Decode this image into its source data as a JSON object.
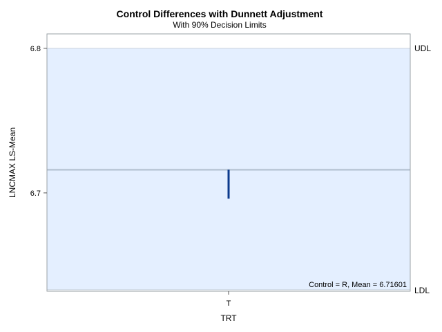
{
  "chart_data": {
    "type": "dunnett-control-differences",
    "title": "Control Differences with Dunnett Adjustment",
    "subtitle": "With 90% Decision Limits",
    "xlabel": "TRT",
    "ylabel": "LNCMAX LS-Mean",
    "categories": [
      "T"
    ],
    "y_ticks": [
      6.7,
      6.8
    ],
    "y_tick_labels": [
      "6.7",
      "6.8"
    ],
    "ylim": [
      6.632,
      6.81
    ],
    "control_mean": 6.71601,
    "upper_decision_limit": 6.8,
    "lower_decision_limit": 6.633,
    "udl_label": "UDL",
    "ldl_label": "LDL",
    "points": [
      {
        "category": "T",
        "value": 6.696
      }
    ],
    "inset_text": "Control = R, Mean = 6.71601",
    "colors": {
      "band": "#e4efff",
      "limit_line": "#c8d0dc",
      "reference_line": "#b9c6d6",
      "needle": "#0b3a8c",
      "frame": "#9aa0a6"
    }
  }
}
